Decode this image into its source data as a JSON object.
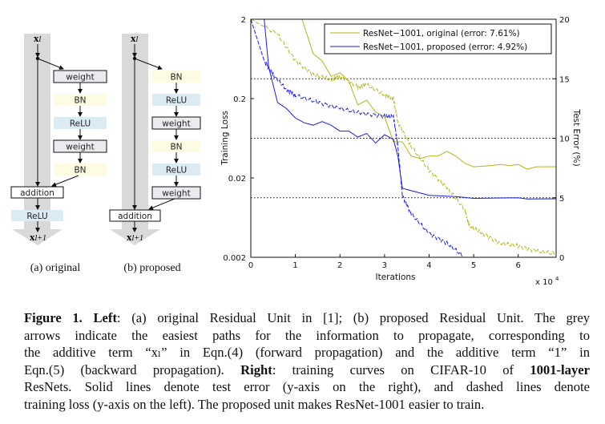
{
  "diagram": {
    "a": {
      "input": "x",
      "input_sub": "l",
      "blocks": [
        "weight",
        "BN",
        "ReLU",
        "weight",
        "BN"
      ],
      "addition": "addition",
      "post": "ReLU",
      "output": "x",
      "output_sub": "l+1",
      "label": "(a) original"
    },
    "b": {
      "input": "x",
      "input_sub": "l",
      "blocks": [
        "BN",
        "ReLU",
        "weight",
        "BN",
        "ReLU",
        "weight"
      ],
      "addition": "addition",
      "output": "x",
      "output_sub": "l+1",
      "label": "(b) proposed"
    },
    "colors": {
      "weight": "#ece9ef",
      "BN": "#fdfbe2",
      "ReLU": "#dcebf3",
      "arrow": "#d9d9d9"
    }
  },
  "chart_data": {
    "type": "line",
    "xlabel": "Iterations",
    "x_multiplier": "x 10",
    "x_multiplier_exp": "4",
    "ylabel_left": "Training Loss",
    "ylabel_right": "Test Error (%)",
    "xlim": [
      0,
      6.85
    ],
    "xticks": [
      "0",
      "1",
      "2",
      "3",
      "4",
      "5",
      "6"
    ],
    "ylim_left": [
      0.002,
      2
    ],
    "yscale_left": "log",
    "yticks_left": [
      "2",
      "0.2",
      "0.02",
      "0.002"
    ],
    "ylim_right": [
      0,
      20
    ],
    "yticks_right": [
      "20",
      "15",
      "10",
      "5",
      "0"
    ],
    "grid": "dotted horizontal at 5, 10, 15 (right axis)",
    "legend": {
      "placement": "top-right",
      "entries": [
        "ResNet−1001, original (error: 7.61%)",
        "ResNet−1001, proposed (error: 4.92%)"
      ]
    },
    "series": [
      {
        "name": "ResNet−1001, original (error: 7.61%)",
        "color": "#b5b51a",
        "kind": "test_error",
        "axis": "right",
        "style": "solid",
        "x": [
          1.15,
          1.4,
          1.6,
          1.8,
          2.0,
          2.2,
          2.4,
          2.6,
          2.8,
          3.0,
          3.2,
          3.4,
          3.6,
          3.8,
          4.0,
          4.2,
          4.4,
          4.6,
          4.8,
          5.0,
          5.4,
          5.6,
          5.8,
          6.0,
          6.2,
          6.4,
          6.85
        ],
        "y": [
          20,
          17.1,
          16.5,
          15.2,
          15.5,
          14.8,
          12.8,
          13.2,
          12.2,
          11.8,
          9.7,
          9.7,
          8.5,
          8.3,
          8.5,
          8.5,
          8.9,
          8.5,
          7.9,
          7.6,
          7.7,
          7.8,
          7.7,
          7.8,
          7.4,
          7.6,
          7.61
        ]
      },
      {
        "name": "ResNet−1001, proposed (error: 4.92%)",
        "color": "#1a1aee",
        "kind": "test_error",
        "axis": "right",
        "style": "solid",
        "x": [
          0.3,
          0.4,
          0.6,
          0.8,
          1.0,
          1.2,
          1.4,
          1.6,
          1.8,
          2.0,
          2.2,
          2.4,
          2.6,
          2.8,
          3.0,
          3.2,
          3.3,
          3.4,
          3.6,
          4.0,
          4.6,
          5.0,
          6.0,
          6.2,
          6.85
        ],
        "y": [
          20,
          16,
          13,
          12.5,
          11.7,
          11.3,
          11.1,
          11.4,
          11.1,
          10.6,
          10.6,
          10.1,
          10.4,
          9.6,
          10.3,
          9.9,
          8.5,
          5.8,
          5.6,
          5.2,
          5.1,
          4.95,
          5.0,
          4.9,
          4.92
        ]
      },
      {
        "color": "#b5b51a",
        "kind": "training_loss",
        "axis": "left",
        "style": "dashed",
        "x": [
          0,
          0.6,
          1.0,
          1.4,
          1.8,
          2.0,
          2.4,
          2.6,
          3.0,
          3.2,
          3.3,
          3.6,
          4.0,
          4.4,
          4.8,
          4.9,
          5.2,
          5.6,
          6.0,
          6.4,
          6.85
        ],
        "y": [
          2,
          1.3,
          0.6,
          0.4,
          0.35,
          0.38,
          0.28,
          0.3,
          0.22,
          0.2,
          0.1,
          0.05,
          0.025,
          0.015,
          0.008,
          0.005,
          0.004,
          0.003,
          0.0028,
          0.0024,
          0.0022
        ]
      },
      {
        "color": "#1a1aee",
        "kind": "training_loss",
        "axis": "left",
        "style": "dashed",
        "x": [
          0,
          0.3,
          0.5,
          0.8,
          1.0,
          1.5,
          2.0,
          2.5,
          3.0,
          3.2,
          3.3,
          3.4,
          3.6,
          4.0,
          4.4,
          4.8
        ],
        "y": [
          2,
          0.6,
          0.4,
          0.26,
          0.22,
          0.18,
          0.15,
          0.13,
          0.12,
          0.12,
          0.05,
          0.012,
          0.007,
          0.004,
          0.003,
          0.002
        ]
      }
    ]
  },
  "caption": {
    "lines": [
      [
        {
          "t": "Figure 1. Left",
          "b": true
        },
        {
          "t": ": (a) original Residual Unit in [1]; (b) proposed Residual Unit. The grey"
        }
      ],
      [
        {
          "t": "arrows indicate the easiest paths for the information to propagate, corresponding to"
        }
      ],
      [
        {
          "t": "the additive term “xₗ” in Eqn.(4) (forward propagation) and the additive term “1” in"
        }
      ],
      [
        {
          "t": "Eqn.(5) (backward propagation). "
        },
        {
          "t": "Right",
          "b": true
        },
        {
          "t": ": training curves on CIFAR-10 of "
        },
        {
          "t": "1001-layer",
          "b": true
        }
      ],
      [
        {
          "t": "ResNets. Solid lines denote test error (y-axis on the right), and dashed lines denote"
        }
      ],
      [
        {
          "t": "training loss (y-axis on the left). The proposed unit makes ResNet-1001 easier to train."
        }
      ]
    ]
  }
}
